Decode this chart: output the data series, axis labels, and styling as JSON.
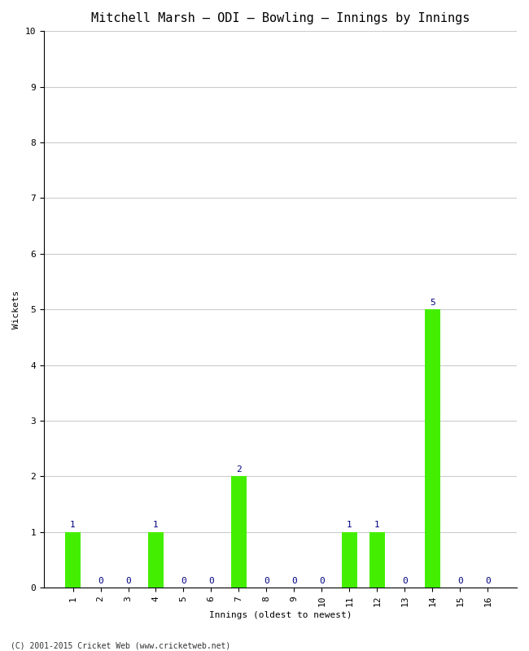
{
  "title": "Mitchell Marsh – ODI – Bowling – Innings by Innings",
  "xlabel": "Innings (oldest to newest)",
  "ylabel": "Wickets",
  "innings": [
    1,
    2,
    3,
    4,
    5,
    6,
    7,
    8,
    9,
    10,
    11,
    12,
    13,
    14,
    15,
    16
  ],
  "wickets": [
    1,
    0,
    0,
    1,
    0,
    0,
    2,
    0,
    0,
    0,
    1,
    1,
    0,
    5,
    0,
    0
  ],
  "bar_color": "#44ee00",
  "label_color": "#000080",
  "ylim": [
    0,
    10
  ],
  "yticks": [
    0,
    1,
    2,
    3,
    4,
    5,
    6,
    7,
    8,
    9,
    10
  ],
  "background_color": "#ffffff",
  "grid_color": "#cccccc",
  "footer": "(C) 2001-2015 Cricket Web (www.cricketweb.net)",
  "title_fontsize": 11,
  "axis_label_fontsize": 8,
  "tick_fontsize": 8,
  "annotation_fontsize": 8,
  "footer_fontsize": 7
}
